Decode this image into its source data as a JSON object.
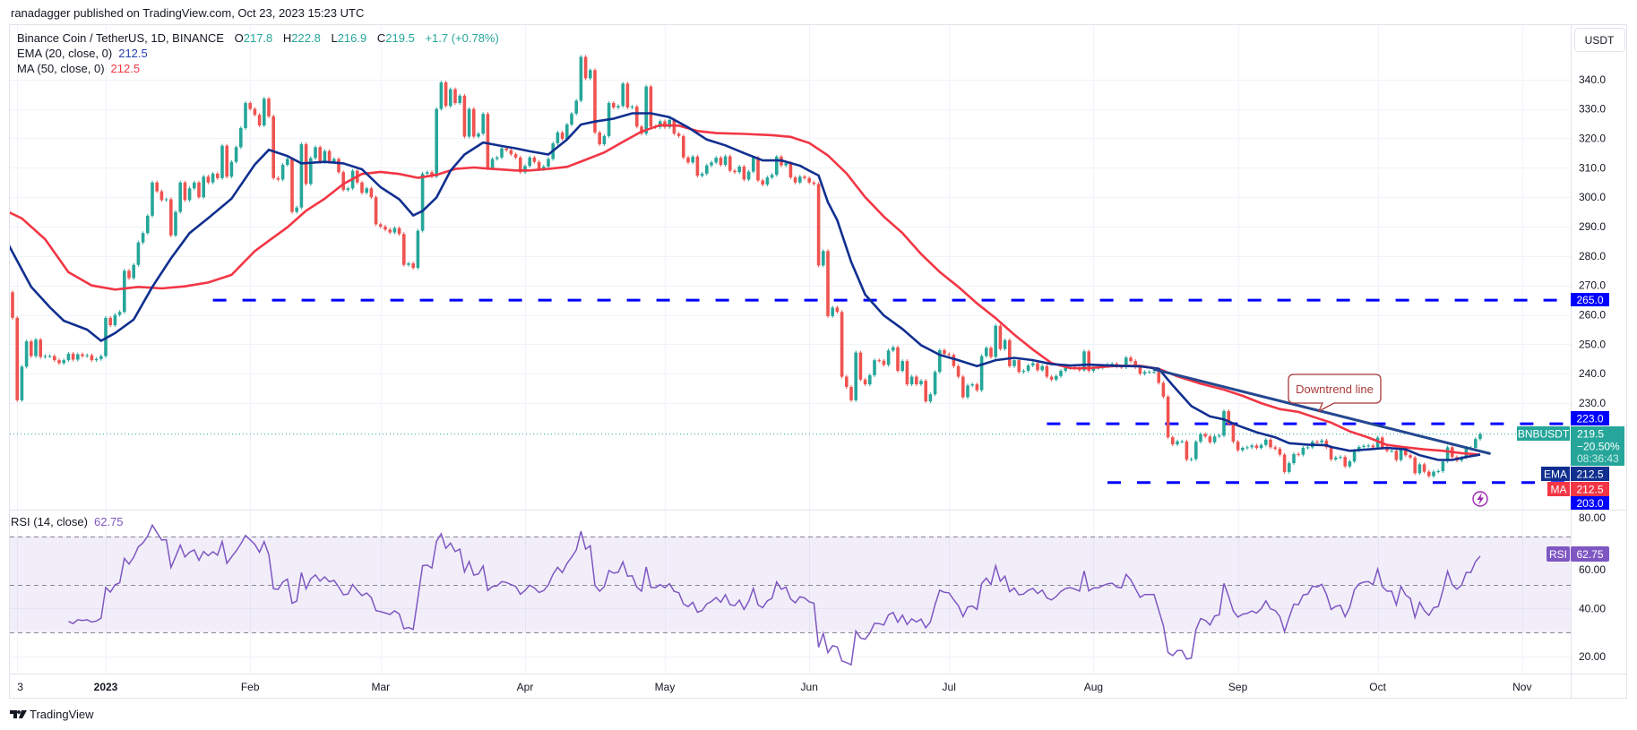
{
  "header": {
    "published": "ranadagger published on TradingView.com, Oct 23, 2023 15:23 UTC"
  },
  "legend": {
    "symbol": "Binance Coin / TetherUS, 1D, BINANCE",
    "o_label": "O",
    "o": "217.8",
    "h_label": "H",
    "h": "222.8",
    "l_label": "L",
    "l": "216.9",
    "c_label": "C",
    "c": "219.5",
    "change": "+1.7 (+0.78%)",
    "ema_label": "EMA (20, close, 0)",
    "ema_value": "212.5",
    "ma_label": "MA (50, close, 0)",
    "ma_value": "212.5",
    "rsi_label": "RSI (14, close)",
    "rsi_value": "62.75"
  },
  "price_axis": {
    "currency": "USDT",
    "ticks": [
      "340.0",
      "330.0",
      "320.0",
      "310.0",
      "300.0",
      "290.0",
      "280.0",
      "270.0",
      "260.0",
      "250.0",
      "240.0",
      "230.0"
    ]
  },
  "rsi_axis": {
    "ticks": [
      "80.00",
      "60.00",
      "40.00",
      "20.00"
    ]
  },
  "time_axis": {
    "labels": [
      {
        "text": "3",
        "date": "2022-12-13",
        "bold": false
      },
      {
        "text": "2023",
        "date": "2023-01-01",
        "bold": true
      },
      {
        "text": "Feb",
        "date": "2023-02-01",
        "bold": false
      },
      {
        "text": "Mar",
        "date": "2023-03-01",
        "bold": false
      },
      {
        "text": "Apr",
        "date": "2023-04-01",
        "bold": false
      },
      {
        "text": "May",
        "date": "2023-05-01",
        "bold": false
      },
      {
        "text": "Jun",
        "date": "2023-06-01",
        "bold": false
      },
      {
        "text": "Jul",
        "date": "2023-07-01",
        "bold": false
      },
      {
        "text": "Aug",
        "date": "2023-08-01",
        "bold": false
      },
      {
        "text": "Sep",
        "date": "2023-09-01",
        "bold": false
      },
      {
        "text": "Oct",
        "date": "2023-10-01",
        "bold": false
      },
      {
        "text": "Nov",
        "date": "2023-11-01",
        "bold": false
      }
    ]
  },
  "right_labels": {
    "level_265": "265.0",
    "level_223": "223.0",
    "symbol_tag": "BNBUSDT",
    "last_price": "219.5",
    "change_pct": "−20.50%",
    "countdown": "08:36:43",
    "ema_tag": "EMA",
    "ema_value": "212.5",
    "ma_tag": "MA",
    "ma_value": "212.5",
    "level_203": "203.0",
    "rsi_tag": "RSI",
    "rsi_value": "62.75"
  },
  "annotation": {
    "text": "Downtrend line"
  },
  "footer": {
    "brand": "TradingView"
  },
  "colors": {
    "up": "#26a69a",
    "down": "#ef5350",
    "ema": "#102f8f",
    "ma": "#f23645",
    "levels": "#0000ff",
    "trendline": "#24478f",
    "rsi": "#7e57c2",
    "callout": "#a83a3a"
  },
  "chart_data": {
    "type": "candlestick",
    "interval": "1D",
    "start_date": "2022-12-10",
    "end_date": "2023-10-23",
    "ylim": [
      193.8,
      358.5
    ],
    "closes": [
      272.6,
      267.7,
      259,
      231,
      242.4,
      251,
      246,
      251.6,
      245.7,
      246,
      246,
      244.6,
      243.6,
      244.6,
      246.8,
      244.8,
      246.6,
      246,
      246.3,
      244.6,
      245,
      246,
      259,
      256.5,
      260,
      261,
      275,
      272.5,
      277,
      284.6,
      287.8,
      293.7,
      305,
      302,
      299,
      299.3,
      287,
      295,
      305,
      299,
      303,
      305,
      300,
      307,
      305,
      308,
      306.5,
      317.5,
      307,
      312,
      317,
      323.5,
      332,
      330,
      328,
      324.4,
      333.5,
      327.5,
      306.5,
      306,
      311,
      313,
      295,
      296.5,
      318,
      304.5,
      313.3,
      317,
      312,
      315.7,
      312,
      313,
      308.5,
      302.5,
      303,
      309,
      305,
      301.5,
      303,
      300,
      290.8,
      290,
      289,
      288,
      289.5,
      287.5,
      277,
      277.5,
      276,
      288.6,
      308,
      308.5,
      307,
      330,
      339,
      331,
      336.7,
      332,
      334.5,
      320.6,
      330,
      320.6,
      321.6,
      328.3,
      309.8,
      313,
      313.5,
      316.6,
      316,
      314.6,
      313.5,
      308.5,
      310.6,
      313.5,
      312,
      309.5,
      310.4,
      313,
      318.3,
      322,
      319.8,
      324.7,
      328.4,
      332.8,
      347.7,
      340.4,
      343.2,
      322,
      318,
      320.8,
      332,
      330.5,
      331,
      338.6,
      330.5,
      330.8,
      324,
      321.6,
      337.6,
      324,
      323.8,
      325.8,
      323.8,
      326.3,
      321.6,
      320.8,
      313.5,
      311.8,
      313.8,
      307.3,
      308,
      310.8,
      311.8,
      313.4,
      311,
      313.9,
      309,
      308.5,
      310.4,
      306,
      308.7,
      313.5,
      305.7,
      304.3,
      306.7,
      307.6,
      313.8,
      310.8,
      311.6,
      306.7,
      305,
      307,
      306.5,
      305,
      304.5,
      276.8,
      281.7,
      259.6,
      262.5,
      261,
      239,
      235.5,
      231,
      247.2,
      238,
      236.4,
      239.5,
      244.6,
      244.4,
      243,
      247.9,
      249,
      241,
      244.3,
      236.4,
      239,
      236.4,
      237.6,
      230.6,
      233,
      240.6,
      248,
      246.7,
      246.4,
      242.6,
      239,
      232,
      236,
      236.4,
      234.4,
      246,
      248.8,
      245.7,
      256.3,
      248.4,
      251.4,
      242.6,
      244.6,
      240.6,
      241,
      242.8,
      243.6,
      241.2,
      242.6,
      239,
      238,
      239.2,
      241,
      242,
      242.3,
      241.8,
      241.2,
      247.6,
      241,
      242,
      242,
      242.7,
      243.2,
      243.4,
      242.4,
      242.2,
      245.5,
      244.3,
      242.2,
      240,
      240.6,
      240.6,
      240.6,
      236.9,
      232.2,
      218.4,
      216,
      217,
      217,
      210.8,
      211,
      216.9,
      219.5,
      218.7,
      216.7,
      218.7,
      219,
      227.3,
      222.9,
      216.9,
      214,
      214.8,
      215,
      215.6,
      214.8,
      215.8,
      217.6,
      215,
      214.5,
      212.5,
      206.6,
      209.6,
      212.7,
      212.5,
      214.8,
      215,
      216.9,
      216.7,
      217.3,
      215,
      210.9,
      211.5,
      211.7,
      208.5,
      210.2,
      213.8,
      215.1,
      215.5,
      215.6,
      215,
      218.3,
      214.8,
      213.8,
      213.8,
      210.7,
      214.3,
      212.3,
      211.5,
      206.2,
      209.2,
      206.7,
      205.2,
      206.7,
      206.9,
      210.2,
      215,
      211.7,
      210.5,
      211.5,
      214.8,
      214.8,
      217.8,
      219.5
    ],
    "ema20": [
      [
        "2022-12-10",
        287.2
      ],
      [
        "2022-12-16",
        269.5
      ],
      [
        "2022-12-20",
        262.6
      ],
      [
        "2022-12-23",
        258
      ],
      [
        "2022-12-28",
        255
      ],
      [
        "2022-12-31",
        251.2
      ],
      [
        "2023-01-03",
        253.8
      ],
      [
        "2023-01-07",
        258.4
      ],
      [
        "2023-01-11",
        269.5
      ],
      [
        "2023-01-15",
        279.2
      ],
      [
        "2023-01-19",
        287.8
      ],
      [
        "2023-01-23",
        292.9
      ],
      [
        "2023-01-28",
        299.5
      ],
      [
        "2023-02-02",
        311.1
      ],
      [
        "2023-02-05",
        316.1
      ],
      [
        "2023-02-09",
        314
      ],
      [
        "2023-02-12",
        311.5
      ],
      [
        "2023-02-17",
        312
      ],
      [
        "2023-02-21",
        311.5
      ],
      [
        "2023-02-25",
        309.5
      ],
      [
        "2023-03-01",
        303.4
      ],
      [
        "2023-03-05",
        299.3
      ],
      [
        "2023-03-08",
        293.8
      ],
      [
        "2023-03-10",
        295.3
      ],
      [
        "2023-03-13",
        299.9
      ],
      [
        "2023-03-16",
        309
      ],
      [
        "2023-03-19",
        314.5
      ],
      [
        "2023-03-23",
        318.6
      ],
      [
        "2023-03-27",
        317.4
      ],
      [
        "2023-03-30",
        316.6
      ],
      [
        "2023-04-02",
        315.6
      ],
      [
        "2023-04-06",
        314.5
      ],
      [
        "2023-04-10",
        319.6
      ],
      [
        "2023-04-13",
        324.7
      ],
      [
        "2023-04-16",
        325.7
      ],
      [
        "2023-04-20",
        326.7
      ],
      [
        "2023-04-24",
        328.5
      ],
      [
        "2023-04-28",
        328.5
      ],
      [
        "2023-05-02",
        327.2
      ],
      [
        "2023-05-06",
        323.7
      ],
      [
        "2023-05-10",
        319.6
      ],
      [
        "2023-05-14",
        317.6
      ],
      [
        "2023-05-18",
        315
      ],
      [
        "2023-05-22",
        312.5
      ],
      [
        "2023-05-26",
        312.5
      ],
      [
        "2023-05-30",
        310.7
      ],
      [
        "2023-06-01",
        309
      ],
      [
        "2023-06-03",
        307.4
      ],
      [
        "2023-06-05",
        298.3
      ],
      [
        "2023-06-07",
        292.2
      ],
      [
        "2023-06-10",
        278
      ],
      [
        "2023-06-13",
        266.9
      ],
      [
        "2023-06-17",
        259.8
      ],
      [
        "2023-06-21",
        255.2
      ],
      [
        "2023-06-25",
        249.7
      ],
      [
        "2023-06-29",
        246.4
      ],
      [
        "2023-07-03",
        244.6
      ],
      [
        "2023-07-07",
        242.6
      ],
      [
        "2023-07-11",
        244.6
      ],
      [
        "2023-07-15",
        245.4
      ],
      [
        "2023-07-19",
        244.6
      ],
      [
        "2023-07-23",
        243.3
      ],
      [
        "2023-07-27",
        242.8
      ],
      [
        "2023-07-31",
        243.1
      ],
      [
        "2023-08-06",
        242.7
      ],
      [
        "2023-08-11",
        242.5
      ],
      [
        "2023-08-15",
        241.7
      ],
      [
        "2023-08-18",
        236.1
      ],
      [
        "2023-08-22",
        229
      ],
      [
        "2023-08-26",
        225.5
      ],
      [
        "2023-08-29",
        224.5
      ],
      [
        "2023-09-01",
        222.4
      ],
      [
        "2023-09-05",
        220.1
      ],
      [
        "2023-09-09",
        218.4
      ],
      [
        "2023-09-12",
        216.4
      ],
      [
        "2023-09-16",
        215.9
      ],
      [
        "2023-09-20",
        215.7
      ],
      [
        "2023-09-21",
        215.1
      ],
      [
        "2023-09-25",
        213.8
      ],
      [
        "2023-09-29",
        214.3
      ],
      [
        "2023-10-03",
        214.8
      ],
      [
        "2023-10-07",
        214.3
      ],
      [
        "2023-10-10",
        212.3
      ],
      [
        "2023-10-14",
        210.7
      ],
      [
        "2023-10-17",
        210.7
      ],
      [
        "2023-10-20",
        211.7
      ],
      [
        "2023-10-23",
        212.5
      ]
    ],
    "ma50": [
      [
        "2022-12-10",
        295.8
      ],
      [
        "2022-12-14",
        292.8
      ],
      [
        "2022-12-19",
        285.7
      ],
      [
        "2022-12-24",
        274.5
      ],
      [
        "2022-12-29",
        270
      ],
      [
        "2023-01-03",
        268.6
      ],
      [
        "2023-01-08",
        269.5
      ],
      [
        "2023-01-13",
        269
      ],
      [
        "2023-01-18",
        269.7
      ],
      [
        "2023-01-23",
        271
      ],
      [
        "2023-01-28",
        273.6
      ],
      [
        "2023-02-02",
        281.7
      ],
      [
        "2023-02-05",
        285.2
      ],
      [
        "2023-02-09",
        289.8
      ],
      [
        "2023-02-13",
        295.4
      ],
      [
        "2023-02-17",
        299.5
      ],
      [
        "2023-02-21",
        304.5
      ],
      [
        "2023-02-25",
        307.9
      ],
      [
        "2023-03-01",
        308.6
      ],
      [
        "2023-03-05",
        307.9
      ],
      [
        "2023-03-09",
        306.6
      ],
      [
        "2023-03-13",
        307.6
      ],
      [
        "2023-03-17",
        309.6
      ],
      [
        "2023-03-21",
        310.1
      ],
      [
        "2023-03-25",
        309.6
      ],
      [
        "2023-03-30",
        309.1
      ],
      [
        "2023-04-02",
        309.1
      ],
      [
        "2023-04-06",
        309.6
      ],
      [
        "2023-04-10",
        310.3
      ],
      [
        "2023-04-14",
        312.7
      ],
      [
        "2023-04-18",
        315.2
      ],
      [
        "2023-04-22",
        318.8
      ],
      [
        "2023-04-26",
        322.3
      ],
      [
        "2023-04-30",
        324.5
      ],
      [
        "2023-05-04",
        324.3
      ],
      [
        "2023-05-08",
        322.5
      ],
      [
        "2023-05-12",
        321.8
      ],
      [
        "2023-05-18",
        321.5
      ],
      [
        "2023-05-24",
        321.1
      ],
      [
        "2023-05-28",
        320.5
      ],
      [
        "2023-06-01",
        318.4
      ],
      [
        "2023-06-05",
        314.2
      ],
      [
        "2023-06-09",
        308.1
      ],
      [
        "2023-06-13",
        300
      ],
      [
        "2023-06-17",
        293.4
      ],
      [
        "2023-06-21",
        287.8
      ],
      [
        "2023-06-25",
        280.7
      ],
      [
        "2023-06-29",
        274.6
      ],
      [
        "2023-07-03",
        269.5
      ],
      [
        "2023-07-07",
        263.9
      ],
      [
        "2023-07-11",
        258.9
      ],
      [
        "2023-07-15",
        253.3
      ],
      [
        "2023-07-19",
        248.2
      ],
      [
        "2023-07-23",
        243.6
      ],
      [
        "2023-07-27",
        241.9
      ],
      [
        "2023-07-31",
        241.9
      ],
      [
        "2023-08-06",
        242.7
      ],
      [
        "2023-08-11",
        242.7
      ],
      [
        "2023-08-15",
        241.7
      ],
      [
        "2023-08-19",
        239.1
      ],
      [
        "2023-08-24",
        236.6
      ],
      [
        "2023-08-29",
        234.6
      ],
      [
        "2023-09-02",
        232.5
      ],
      [
        "2023-09-06",
        230
      ],
      [
        "2023-09-10",
        228
      ],
      [
        "2023-09-14",
        227
      ],
      [
        "2023-09-18",
        224.9
      ],
      [
        "2023-09-21",
        223.4
      ],
      [
        "2023-09-25",
        220.4
      ],
      [
        "2023-09-29",
        218.3
      ],
      [
        "2023-10-03",
        215.8
      ],
      [
        "2023-10-07",
        215
      ],
      [
        "2023-10-11",
        214.3
      ],
      [
        "2023-10-15",
        213.8
      ],
      [
        "2023-10-19",
        213
      ],
      [
        "2023-10-23",
        212.5
      ]
    ],
    "trendline": {
      "from": [
        "2023-08-14",
        241.5
      ],
      "to": [
        "2023-10-25",
        212.9
      ]
    },
    "horizontal_levels": [
      {
        "price": 265,
        "from": "2023-01-24"
      },
      {
        "price": 223,
        "from": "2023-07-22"
      },
      {
        "price": 203,
        "from": "2023-08-04"
      }
    ],
    "last_price": 219.5,
    "rsi": {
      "period": 14,
      "last": 62.75,
      "ylim": [
        13,
        80.7
      ],
      "band": [
        30,
        70
      ],
      "mid": 50
    }
  }
}
